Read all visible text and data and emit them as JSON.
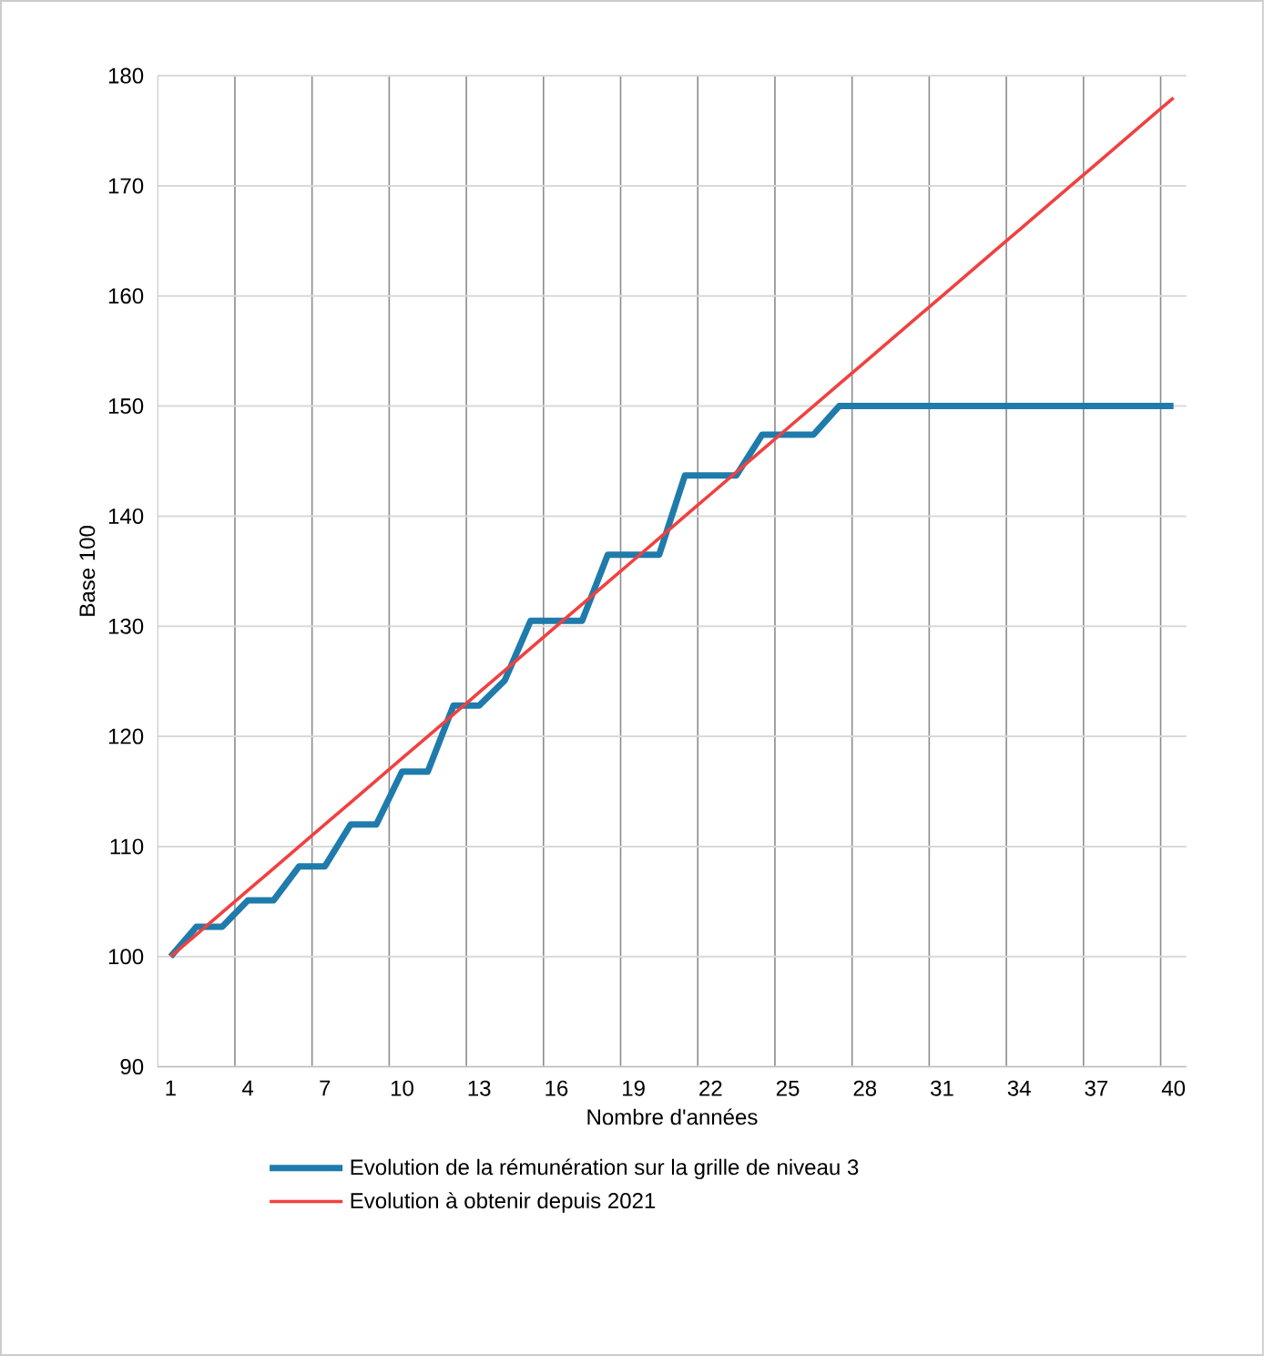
{
  "chart_data": {
    "type": "line",
    "xlabel": "Nombre d'années",
    "ylabel": "Base 100",
    "categories": [
      "1",
      null,
      null,
      "4",
      null,
      null,
      "7",
      null,
      null,
      "10",
      null,
      null,
      "13",
      null,
      null,
      "16",
      null,
      null,
      "19",
      null,
      null,
      "22",
      null,
      null,
      "25",
      null,
      null,
      "28",
      null,
      null,
      "31",
      null,
      null,
      "34",
      null,
      null,
      "37",
      null,
      null,
      "40"
    ],
    "series": [
      {
        "name": "Evolution de la rémunération sur la grille de niveau 3",
        "color": "#1f7bab",
        "values": [
          100,
          102.7,
          102.7,
          105.1,
          105.1,
          108.2,
          108.2,
          112.0,
          112.0,
          116.8,
          116.8,
          122.8,
          122.8,
          125.1,
          130.5,
          130.5,
          130.5,
          136.5,
          136.5,
          136.5,
          143.7,
          143.7,
          143.7,
          147.4,
          147.4,
          147.4,
          150,
          150,
          150,
          150,
          150,
          150,
          150,
          150,
          150,
          150,
          150,
          150,
          150,
          150
        ]
      },
      {
        "name": "Evolution à obtenir depuis 2021",
        "color": "#f04141",
        "values": [
          100,
          102,
          104,
          106,
          108,
          110,
          112,
          114,
          116,
          118,
          120,
          122,
          124,
          126,
          128,
          130,
          132,
          134,
          136,
          138,
          140,
          142,
          144,
          146,
          148,
          150,
          152,
          154,
          156,
          158,
          160,
          162,
          164,
          166,
          168,
          170,
          172,
          174,
          176,
          178
        ]
      }
    ],
    "ylim": [
      90,
      180
    ],
    "yticks": [
      90,
      100,
      110,
      120,
      130,
      140,
      150,
      160,
      170,
      180
    ],
    "grid": true,
    "legend": "bottom",
    "marker": "none",
    "line_style": "solid"
  }
}
